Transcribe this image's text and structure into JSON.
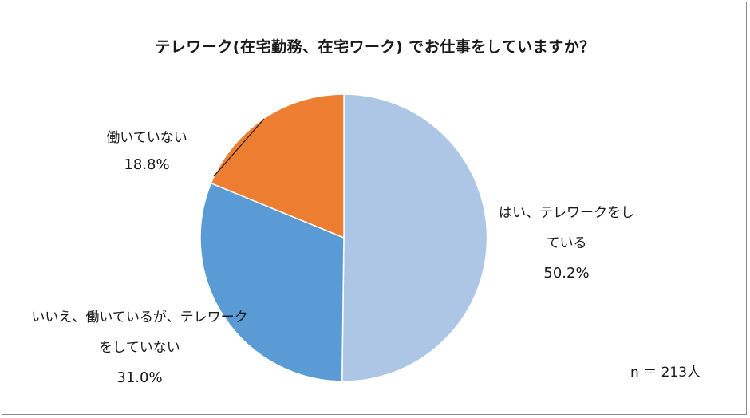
{
  "chart_data": {
    "type": "pie",
    "title": "テレワーク(在宅勤務、在宅ワーク) でお仕事をしていますか？",
    "start_angle_deg": 0,
    "direction": "clockwise",
    "slices": [
      {
        "label_lines": [
          "はい、テレワークをし",
          "ている"
        ],
        "value": 50.2,
        "value_label": "50.2%",
        "color": "#adc6e6"
      },
      {
        "label_lines": [
          "いいえ、働いているが、テレワーク",
          "をしていない"
        ],
        "value": 31.0,
        "value_label": "31.0%",
        "color": "#5b9bd5"
      },
      {
        "label_lines": [
          "働いていない"
        ],
        "value": 18.8,
        "value_label": "18.8%",
        "color": "#ed7d31"
      }
    ],
    "sample_size": "n ＝ 213人"
  }
}
